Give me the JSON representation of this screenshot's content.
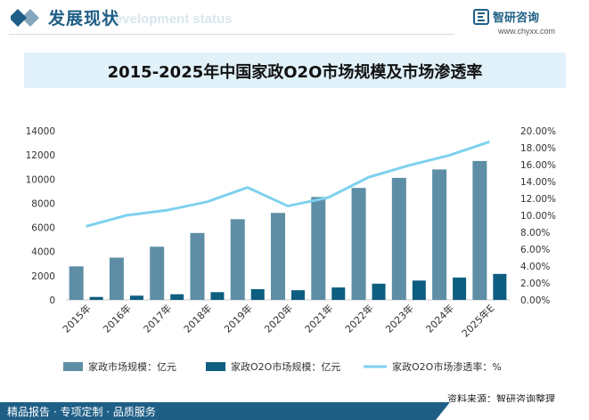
{
  "header": {
    "title": "发展现状",
    "subtitle_en": "Development status",
    "brand_name": "智研咨询",
    "brand_url": "www.chyxx.com"
  },
  "chart_title": "2015-2025年中国家政O2O市场规模及市场渗透率",
  "chart_data": {
    "type": "bar",
    "title": "2015-2025年中国家政O2O市场规模及市场渗透率",
    "categories": [
      "2015年",
      "2016年",
      "2017年",
      "2018年",
      "2019年",
      "2020年",
      "2021年",
      "2022年",
      "2023年",
      "2024年",
      "2025年E"
    ],
    "series": [
      {
        "name": "家政市场规模：亿元",
        "type": "bar",
        "axis": "left",
        "color": "#5e8ea5",
        "values": [
          2776,
          3498,
          4400,
          5540,
          6680,
          7200,
          8520,
          9270,
          10100,
          10800,
          11500
        ]
      },
      {
        "name": "家政O2O市场规模：亿元",
        "type": "bar",
        "axis": "left",
        "color": "#0d5e80",
        "values": [
          242,
          350,
          465,
          640,
          890,
          800,
          1030,
          1340,
          1600,
          1850,
          2150
        ]
      },
      {
        "name": "家政O2O市场渗透率：%",
        "type": "line",
        "axis": "right",
        "color": "#7fd1ef",
        "values": [
          8.7,
          10.0,
          10.6,
          11.6,
          13.3,
          11.1,
          12.1,
          14.5,
          15.9,
          17.1,
          18.7
        ]
      }
    ],
    "y_left": {
      "min": 0,
      "max": 14000,
      "ticks": [
        "0",
        "2000",
        "4000",
        "6000",
        "8000",
        "10000",
        "12000",
        "14000"
      ]
    },
    "y_right": {
      "min": 0,
      "max": 20,
      "ticks": [
        "0.00%",
        "2.00%",
        "4.00%",
        "6.00%",
        "8.00%",
        "10.00%",
        "12.00%",
        "14.00%",
        "16.00%",
        "18.00%",
        "20.00%"
      ]
    },
    "legend_position": "bottom",
    "grid": false
  },
  "source": "资料来源：智研咨询整理",
  "footer_tagline": "精品报告 · 专项定制 · 品质服务",
  "watermark_text": "智研咨询"
}
